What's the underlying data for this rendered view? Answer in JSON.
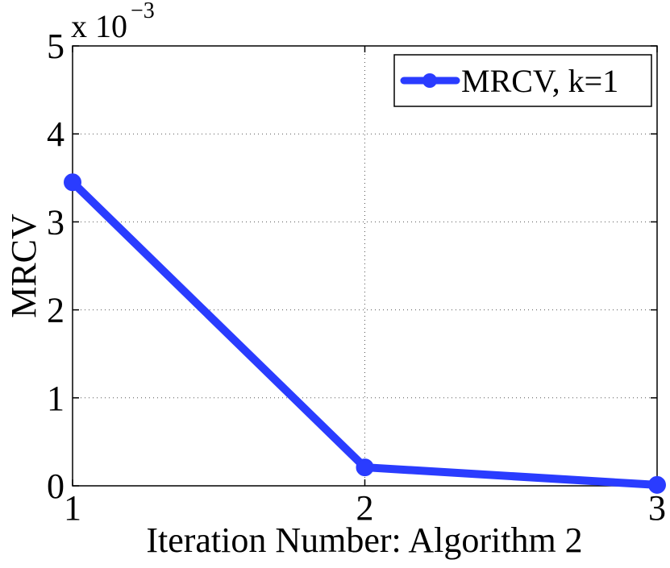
{
  "chart_data": {
    "type": "line",
    "title": "",
    "xlabel": "Iteration  Number: Algorithm 2",
    "ylabel": "MRCV",
    "y_multiplier": {
      "base": "x 10",
      "exponent": "−3"
    },
    "xlim": [
      1,
      3
    ],
    "ylim": [
      0,
      5
    ],
    "x_ticks": [
      1,
      2,
      3
    ],
    "x_tick_labels": [
      "1",
      "2",
      "3"
    ],
    "y_ticks": [
      0,
      1,
      2,
      3,
      4,
      5
    ],
    "y_tick_labels": [
      "0",
      "1",
      "2",
      "3",
      "4",
      "5"
    ],
    "grid": true,
    "legend_position": "top-right",
    "series": [
      {
        "name": "MRCV, k=1",
        "color": "#2a3cff",
        "x": [
          1,
          2,
          3
        ],
        "y": [
          3.45,
          0.21,
          0.01
        ]
      }
    ]
  }
}
